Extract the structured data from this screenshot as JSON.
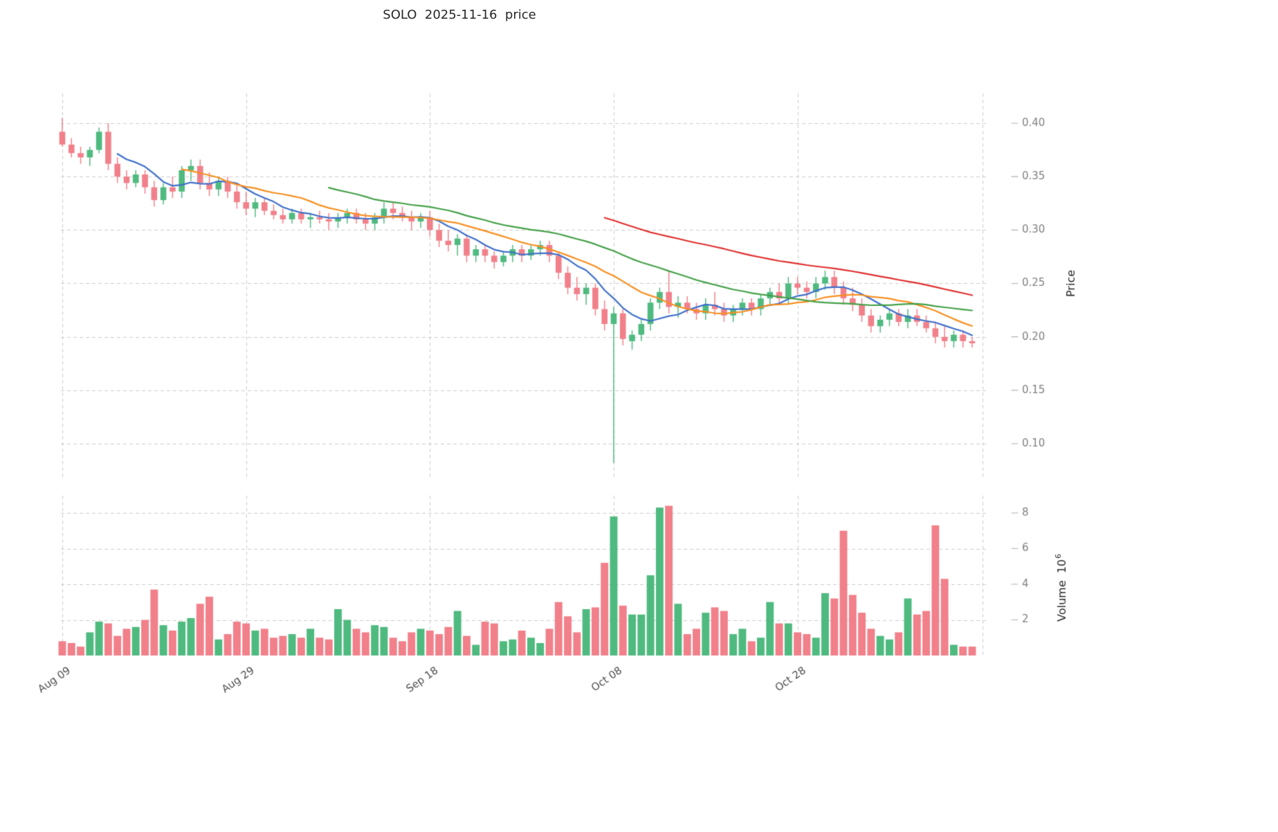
{
  "page": {
    "title": "SOLO  2025-11-16  price"
  },
  "chart_data": {
    "type": "candlestick",
    "title": "SOLO  2025-11-16  price",
    "legend_position": "none",
    "grid": true,
    "x_axis": {
      "start_label": "Aug 09",
      "end_date_implied": "2025-11-16",
      "tick_labels": [
        "Aug 09",
        "Aug 29",
        "Sep 18",
        "Oct 08",
        "Oct 28"
      ],
      "tick_indices": [
        0,
        20,
        40,
        60,
        80
      ]
    },
    "price_axis": {
      "label": "Price",
      "ticks": [
        0.1,
        0.15,
        0.2,
        0.25,
        0.3,
        0.35,
        0.4
      ],
      "range": [
        0.07,
        0.43
      ]
    },
    "volume_axis": {
      "label": "Volume",
      "unit_mantissa": "10",
      "unit_exponent": "6",
      "ticks": [
        2,
        4,
        6,
        8
      ],
      "range": [
        0,
        8.9
      ]
    },
    "moving_averages": [
      {
        "name": "ma-7",
        "window": 7,
        "color": "#3d6fc9"
      },
      {
        "name": "ma-14",
        "window": 14,
        "color": "#f78f20"
      },
      {
        "name": "ma-30",
        "window": 30,
        "color": "#43a047"
      },
      {
        "name": "ma-60",
        "window": 60,
        "color": "#e02f2f"
      }
    ],
    "colors": {
      "up": "#4fba7f",
      "down": "#f1808a",
      "grid": "#cbcbcb",
      "tick_text": "#7f7f7f",
      "date_text": "#4d4d4d",
      "axis_title_text": "#262626",
      "tick_mark": "#b0b0b0"
    },
    "ohlc": [
      [
        0.392,
        0.405,
        0.378,
        0.38
      ],
      [
        0.38,
        0.386,
        0.368,
        0.372
      ],
      [
        0.372,
        0.378,
        0.362,
        0.368
      ],
      [
        0.368,
        0.378,
        0.36,
        0.375
      ],
      [
        0.375,
        0.396,
        0.372,
        0.392
      ],
      [
        0.392,
        0.4,
        0.356,
        0.362
      ],
      [
        0.362,
        0.368,
        0.344,
        0.35
      ],
      [
        0.35,
        0.356,
        0.338,
        0.344
      ],
      [
        0.344,
        0.356,
        0.34,
        0.352
      ],
      [
        0.352,
        0.356,
        0.334,
        0.34
      ],
      [
        0.34,
        0.346,
        0.322,
        0.328
      ],
      [
        0.328,
        0.344,
        0.324,
        0.34
      ],
      [
        0.34,
        0.35,
        0.33,
        0.336
      ],
      [
        0.336,
        0.36,
        0.33,
        0.356
      ],
      [
        0.356,
        0.366,
        0.346,
        0.36
      ],
      [
        0.36,
        0.366,
        0.338,
        0.344
      ],
      [
        0.344,
        0.354,
        0.332,
        0.338
      ],
      [
        0.338,
        0.35,
        0.332,
        0.346
      ],
      [
        0.346,
        0.35,
        0.33,
        0.336
      ],
      [
        0.336,
        0.342,
        0.32,
        0.326
      ],
      [
        0.326,
        0.336,
        0.314,
        0.32
      ],
      [
        0.32,
        0.33,
        0.312,
        0.326
      ],
      [
        0.326,
        0.33,
        0.314,
        0.318
      ],
      [
        0.318,
        0.324,
        0.31,
        0.314
      ],
      [
        0.314,
        0.32,
        0.306,
        0.31
      ],
      [
        0.31,
        0.32,
        0.306,
        0.316
      ],
      [
        0.316,
        0.32,
        0.306,
        0.31
      ],
      [
        0.31,
        0.316,
        0.302,
        0.312
      ],
      [
        0.312,
        0.318,
        0.306,
        0.31
      ],
      [
        0.31,
        0.316,
        0.3,
        0.308
      ],
      [
        0.308,
        0.316,
        0.302,
        0.312
      ],
      [
        0.312,
        0.32,
        0.306,
        0.316
      ],
      [
        0.316,
        0.32,
        0.306,
        0.31
      ],
      [
        0.31,
        0.316,
        0.3,
        0.306
      ],
      [
        0.306,
        0.316,
        0.3,
        0.312
      ],
      [
        0.312,
        0.326,
        0.306,
        0.32
      ],
      [
        0.32,
        0.326,
        0.31,
        0.316
      ],
      [
        0.316,
        0.322,
        0.308,
        0.312
      ],
      [
        0.312,
        0.318,
        0.3,
        0.308
      ],
      [
        0.308,
        0.316,
        0.302,
        0.312
      ],
      [
        0.312,
        0.318,
        0.294,
        0.3
      ],
      [
        0.3,
        0.306,
        0.284,
        0.29
      ],
      [
        0.29,
        0.3,
        0.28,
        0.286
      ],
      [
        0.286,
        0.296,
        0.276,
        0.292
      ],
      [
        0.292,
        0.296,
        0.27,
        0.276
      ],
      [
        0.276,
        0.286,
        0.27,
        0.282
      ],
      [
        0.282,
        0.286,
        0.27,
        0.276
      ],
      [
        0.276,
        0.28,
        0.264,
        0.27
      ],
      [
        0.27,
        0.28,
        0.266,
        0.276
      ],
      [
        0.276,
        0.286,
        0.27,
        0.282
      ],
      [
        0.282,
        0.286,
        0.27,
        0.276
      ],
      [
        0.276,
        0.286,
        0.272,
        0.282
      ],
      [
        0.282,
        0.29,
        0.276,
        0.286
      ],
      [
        0.286,
        0.29,
        0.27,
        0.276
      ],
      [
        0.276,
        0.28,
        0.254,
        0.26
      ],
      [
        0.26,
        0.266,
        0.24,
        0.246
      ],
      [
        0.246,
        0.256,
        0.234,
        0.24
      ],
      [
        0.24,
        0.25,
        0.23,
        0.246
      ],
      [
        0.246,
        0.25,
        0.22,
        0.226
      ],
      [
        0.226,
        0.234,
        0.206,
        0.212
      ],
      [
        0.212,
        0.228,
        0.082,
        0.222
      ],
      [
        0.222,
        0.226,
        0.192,
        0.198
      ],
      [
        0.196,
        0.206,
        0.188,
        0.202
      ],
      [
        0.202,
        0.216,
        0.196,
        0.212
      ],
      [
        0.212,
        0.236,
        0.206,
        0.232
      ],
      [
        0.232,
        0.246,
        0.226,
        0.242
      ],
      [
        0.242,
        0.262,
        0.222,
        0.228
      ],
      [
        0.228,
        0.238,
        0.218,
        0.232
      ],
      [
        0.232,
        0.238,
        0.222,
        0.226
      ],
      [
        0.226,
        0.232,
        0.216,
        0.222
      ],
      [
        0.222,
        0.236,
        0.216,
        0.23
      ],
      [
        0.23,
        0.242,
        0.22,
        0.226
      ],
      [
        0.226,
        0.232,
        0.214,
        0.22
      ],
      [
        0.22,
        0.23,
        0.214,
        0.226
      ],
      [
        0.226,
        0.236,
        0.22,
        0.232
      ],
      [
        0.232,
        0.236,
        0.22,
        0.226
      ],
      [
        0.226,
        0.24,
        0.22,
        0.236
      ],
      [
        0.236,
        0.246,
        0.23,
        0.242
      ],
      [
        0.242,
        0.25,
        0.23,
        0.236
      ],
      [
        0.236,
        0.256,
        0.23,
        0.25
      ],
      [
        0.25,
        0.256,
        0.24,
        0.246
      ],
      [
        0.246,
        0.252,
        0.236,
        0.242
      ],
      [
        0.242,
        0.256,
        0.236,
        0.25
      ],
      [
        0.25,
        0.262,
        0.244,
        0.256
      ],
      [
        0.256,
        0.262,
        0.24,
        0.246
      ],
      [
        0.246,
        0.252,
        0.23,
        0.236
      ],
      [
        0.236,
        0.246,
        0.224,
        0.23
      ],
      [
        0.23,
        0.236,
        0.214,
        0.22
      ],
      [
        0.22,
        0.226,
        0.204,
        0.21
      ],
      [
        0.21,
        0.22,
        0.204,
        0.216
      ],
      [
        0.216,
        0.226,
        0.21,
        0.222
      ],
      [
        0.222,
        0.226,
        0.21,
        0.214
      ],
      [
        0.214,
        0.226,
        0.208,
        0.22
      ],
      [
        0.22,
        0.226,
        0.21,
        0.214
      ],
      [
        0.214,
        0.22,
        0.204,
        0.208
      ],
      [
        0.208,
        0.214,
        0.194,
        0.2
      ],
      [
        0.2,
        0.21,
        0.19,
        0.196
      ],
      [
        0.196,
        0.206,
        0.19,
        0.202
      ],
      [
        0.202,
        0.206,
        0.19,
        0.196
      ],
      [
        0.196,
        0.2,
        0.19,
        0.194
      ]
    ],
    "volume": [
      0.8,
      0.7,
      0.5,
      1.3,
      1.9,
      1.8,
      1.1,
      1.5,
      1.6,
      2.0,
      3.7,
      1.7,
      1.4,
      1.9,
      2.1,
      2.9,
      3.3,
      0.9,
      1.2,
      1.9,
      1.8,
      1.4,
      1.5,
      1.0,
      1.1,
      1.2,
      1.0,
      1.5,
      1.0,
      0.9,
      2.6,
      2.0,
      1.5,
      1.3,
      1.7,
      1.6,
      1.0,
      0.8,
      1.3,
      1.5,
      1.4,
      1.2,
      1.6,
      2.5,
      1.1,
      0.6,
      1.9,
      1.8,
      0.8,
      0.9,
      1.4,
      1.0,
      0.7,
      1.5,
      3.0,
      2.2,
      1.3,
      2.6,
      2.7,
      5.2,
      7.8,
      2.8,
      2.3,
      2.3,
      4.5,
      8.3,
      8.4,
      2.9,
      1.2,
      1.5,
      2.4,
      2.7,
      2.5,
      1.2,
      1.5,
      0.8,
      1.0,
      3.0,
      1.8,
      1.8,
      1.3,
      1.2,
      1.0,
      3.5,
      3.2,
      7.0,
      3.4,
      2.4,
      1.5,
      1.1,
      0.9,
      1.3,
      3.2,
      2.3,
      2.5,
      7.3,
      4.3,
      0.6,
      0.5,
      0.5
    ]
  }
}
